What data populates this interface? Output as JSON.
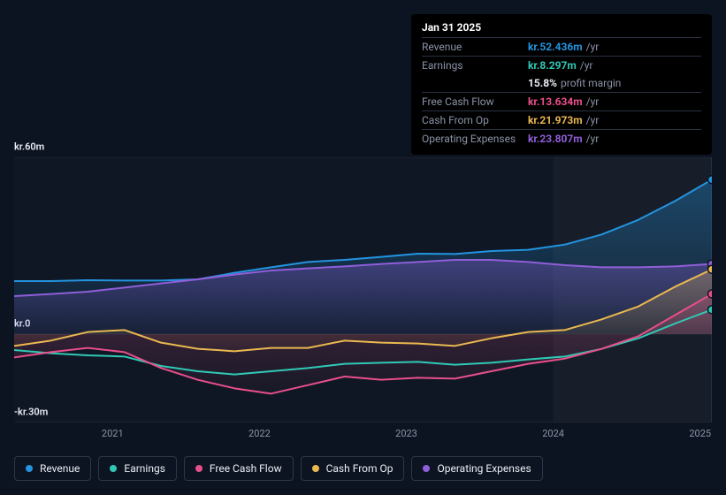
{
  "tooltip": {
    "date": "Jan 31 2025",
    "rows": [
      {
        "label": "Revenue",
        "value": "kr.52.436m",
        "unit": "/yr",
        "color": "#2394df"
      },
      {
        "label": "Earnings",
        "value": "kr.8.297m",
        "unit": "/yr",
        "color": "#30c9b6"
      },
      {
        "label": "",
        "value": "15.8%",
        "unit": "profit margin",
        "color": "#eaeef5",
        "noBorder": true
      },
      {
        "label": "Free Cash Flow",
        "value": "kr.13.634m",
        "unit": "/yr",
        "color": "#e84f8a"
      },
      {
        "label": "Cash From Op",
        "value": "kr.21.973m",
        "unit": "/yr",
        "color": "#eab850"
      },
      {
        "label": "Operating Expenses",
        "value": "kr.23.807m",
        "unit": "/yr",
        "color": "#8f5fd9"
      }
    ]
  },
  "chart": {
    "type": "area-line",
    "background_color": "#0d1421",
    "grid_color": "#232a3b",
    "line_width": 2,
    "area_opacity": 0.25,
    "font_family": "sans-serif",
    "label_fontsize": 11,
    "legend_fontsize": 12,
    "highlight_x_from": 2024,
    "y": {
      "min": -30,
      "max": 60,
      "ticks": [
        {
          "v": 60,
          "label": "kr.60m"
        },
        {
          "v": 0,
          "label": "kr.0"
        },
        {
          "v": -30,
          "label": "-kr.30m"
        }
      ]
    },
    "x": {
      "min": 2020.33,
      "max": 2025.08,
      "ticks": [
        {
          "v": 2021,
          "label": "2021"
        },
        {
          "v": 2022,
          "label": "2022"
        },
        {
          "v": 2023,
          "label": "2023"
        },
        {
          "v": 2024,
          "label": "2024"
        },
        {
          "v": 2025,
          "label": "2025"
        }
      ]
    },
    "series": [
      {
        "name": "Revenue",
        "color": "#2394df",
        "fill": true,
        "fill_stops": [
          [
            0,
            "rgba(35,148,223,0.35)"
          ],
          [
            1,
            "rgba(35,148,223,0.05)"
          ]
        ],
        "data": [
          [
            2020.33,
            18
          ],
          [
            2020.58,
            18
          ],
          [
            2020.83,
            18.3
          ],
          [
            2021.08,
            18.2
          ],
          [
            2021.33,
            18.2
          ],
          [
            2021.58,
            18.6
          ],
          [
            2021.83,
            20.8
          ],
          [
            2022.08,
            22.7
          ],
          [
            2022.33,
            24.5
          ],
          [
            2022.58,
            25.2
          ],
          [
            2022.83,
            26.2
          ],
          [
            2023.08,
            27.3
          ],
          [
            2023.33,
            27.2
          ],
          [
            2023.58,
            28.2
          ],
          [
            2023.83,
            28.6
          ],
          [
            2024.08,
            30.4
          ],
          [
            2024.33,
            33.8
          ],
          [
            2024.58,
            38.8
          ],
          [
            2024.83,
            45.2
          ],
          [
            2025.08,
            52.436
          ]
        ]
      },
      {
        "name": "Operating Expenses",
        "color": "#8f5fd9",
        "fill": true,
        "fill_stops": [
          [
            0,
            "rgba(143,95,217,0.35)"
          ],
          [
            1,
            "rgba(143,95,217,0.05)"
          ]
        ],
        "data": [
          [
            2020.33,
            12.9
          ],
          [
            2020.58,
            13.6
          ],
          [
            2020.83,
            14.4
          ],
          [
            2021.08,
            15.8
          ],
          [
            2021.33,
            17.2
          ],
          [
            2021.58,
            18.6
          ],
          [
            2021.83,
            20.2
          ],
          [
            2022.08,
            21.6
          ],
          [
            2022.33,
            22.3
          ],
          [
            2022.58,
            23.0
          ],
          [
            2022.83,
            23.8
          ],
          [
            2023.08,
            24.5
          ],
          [
            2023.33,
            25.2
          ],
          [
            2023.58,
            25.2
          ],
          [
            2023.83,
            24.5
          ],
          [
            2024.08,
            23.4
          ],
          [
            2024.33,
            22.7
          ],
          [
            2024.58,
            22.7
          ],
          [
            2024.83,
            23.0
          ],
          [
            2025.08,
            23.807
          ]
        ]
      },
      {
        "name": "Cash From Op",
        "color": "#eab850",
        "fill": true,
        "fill_stops": [
          [
            0,
            "rgba(234,184,80,0.30)"
          ],
          [
            1,
            "rgba(234,184,80,0.03)"
          ]
        ],
        "data": [
          [
            2020.33,
            -4.0
          ],
          [
            2020.58,
            -2.2
          ],
          [
            2020.83,
            0.7
          ],
          [
            2021.08,
            1.4
          ],
          [
            2021.33,
            -2.9
          ],
          [
            2021.58,
            -5.0
          ],
          [
            2021.83,
            -5.8
          ],
          [
            2022.08,
            -4.7
          ],
          [
            2022.33,
            -4.7
          ],
          [
            2022.58,
            -2.2
          ],
          [
            2022.83,
            -2.9
          ],
          [
            2023.08,
            -3.2
          ],
          [
            2023.33,
            -4.0
          ],
          [
            2023.58,
            -1.4
          ],
          [
            2023.83,
            0.7
          ],
          [
            2024.08,
            1.4
          ],
          [
            2024.33,
            5.0
          ],
          [
            2024.58,
            9.4
          ],
          [
            2024.83,
            16.1
          ],
          [
            2025.08,
            21.973
          ]
        ]
      },
      {
        "name": "Earnings",
        "color": "#30c9b6",
        "fill": false,
        "data": [
          [
            2020.33,
            -5.4
          ],
          [
            2020.58,
            -6.5
          ],
          [
            2020.83,
            -7.2
          ],
          [
            2021.08,
            -7.6
          ],
          [
            2021.33,
            -10.8
          ],
          [
            2021.58,
            -12.6
          ],
          [
            2021.83,
            -13.7
          ],
          [
            2022.08,
            -12.6
          ],
          [
            2022.33,
            -11.5
          ],
          [
            2022.58,
            -10.1
          ],
          [
            2022.83,
            -9.7
          ],
          [
            2023.08,
            -9.4
          ],
          [
            2023.33,
            -10.4
          ],
          [
            2023.58,
            -9.7
          ],
          [
            2023.83,
            -8.6
          ],
          [
            2024.08,
            -7.6
          ],
          [
            2024.33,
            -5.0
          ],
          [
            2024.58,
            -1.4
          ],
          [
            2024.83,
            3.6
          ],
          [
            2025.08,
            8.297
          ]
        ]
      },
      {
        "name": "Free Cash Flow",
        "color": "#e84f8a",
        "fill": true,
        "fill_stops": [
          [
            0,
            "rgba(232,79,138,0.25)"
          ],
          [
            1,
            "rgba(232,79,138,0.03)"
          ]
        ],
        "data": [
          [
            2020.33,
            -7.9
          ],
          [
            2020.58,
            -6.1
          ],
          [
            2020.83,
            -4.7
          ],
          [
            2021.08,
            -6.1
          ],
          [
            2021.33,
            -11.5
          ],
          [
            2021.58,
            -15.5
          ],
          [
            2021.83,
            -18.4
          ],
          [
            2022.08,
            -20.2
          ],
          [
            2022.33,
            -17.3
          ],
          [
            2022.58,
            -14.4
          ],
          [
            2022.83,
            -15.5
          ],
          [
            2023.08,
            -14.8
          ],
          [
            2023.33,
            -15.1
          ],
          [
            2023.58,
            -12.6
          ],
          [
            2023.83,
            -10.1
          ],
          [
            2024.08,
            -8.3
          ],
          [
            2024.33,
            -5.0
          ],
          [
            2024.58,
            -0.7
          ],
          [
            2024.83,
            6.5
          ],
          [
            2025.08,
            13.634
          ]
        ]
      }
    ]
  },
  "legend": [
    {
      "label": "Revenue",
      "color": "#2394df"
    },
    {
      "label": "Earnings",
      "color": "#30c9b6"
    },
    {
      "label": "Free Cash Flow",
      "color": "#e84f8a"
    },
    {
      "label": "Cash From Op",
      "color": "#eab850"
    },
    {
      "label": "Operating Expenses",
      "color": "#8f5fd9"
    }
  ]
}
